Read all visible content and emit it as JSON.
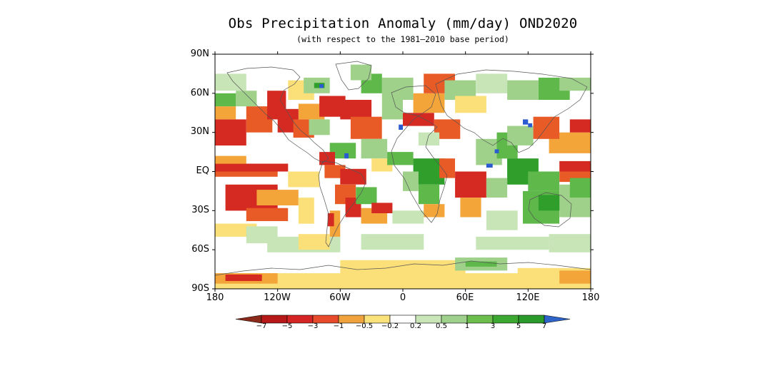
{
  "title": "Obs Precipitation Anomaly (mm/day) OND2020",
  "subtitle": "(with respect to the 1981–2010 base period)",
  "map": {
    "lat_labels": [
      "90N",
      "60N",
      "30N",
      "EQ",
      "30S",
      "60S",
      "90S"
    ],
    "lon_labels": [
      "180",
      "120W",
      "60W",
      "0",
      "60E",
      "120E",
      "180"
    ]
  },
  "colorbar": {
    "labels": [
      "−7",
      "−5",
      "−3",
      "−1",
      "−0.5",
      "−0.2",
      "0.2",
      "0.5",
      "1",
      "3",
      "5",
      "7"
    ],
    "colors": [
      "#8b2a1a",
      "#b71818",
      "#d52424",
      "#e84a2c",
      "#f0a23c",
      "#fce27a",
      "#ffffff",
      "#c8e6b8",
      "#9fd18c",
      "#6cbf4c",
      "#3ca832",
      "#2a9a2a",
      "#2e63c8"
    ]
  },
  "anomaly_colors": {
    "dry_strong": "#d42a22",
    "dry_moderate": "#e85a26",
    "dry_light": "#f3a53a",
    "dry_weak": "#fbe07a",
    "wet_weak": "#c7e5b6",
    "wet_light": "#9fd18b",
    "wet_moderate": "#5fb84a",
    "wet_strong": "#2f9e2a",
    "extreme_wet": "#2b5bd0"
  }
}
